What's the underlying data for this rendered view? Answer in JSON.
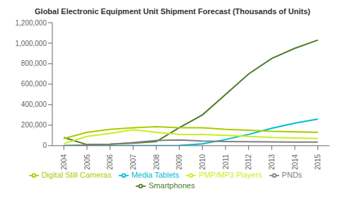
{
  "chart_data": {
    "type": "line",
    "title": "Global Electronic Equipment Unit Shipment Forecast (Thousands of Units)",
    "x": [
      2004,
      2005,
      2006,
      2007,
      2008,
      2009,
      2010,
      2011,
      2012,
      2013,
      2014,
      2015
    ],
    "series": [
      {
        "name": "Smartphones",
        "color": "#4d7c2a",
        "values": [
          80000,
          10000,
          15000,
          25000,
          40000,
          175000,
          300000,
          500000,
          700000,
          850000,
          950000,
          1030000
        ]
      },
      {
        "name": "Media Tablets",
        "color": "#00bcd4",
        "values": [
          0,
          0,
          0,
          0,
          0,
          2000,
          18000,
          60000,
          110000,
          170000,
          220000,
          260000
        ]
      },
      {
        "name": "Digital Still Cameras",
        "color": "#aacc00",
        "values": [
          70000,
          130000,
          160000,
          175000,
          185000,
          175000,
          175000,
          160000,
          150000,
          140000,
          135000,
          130000
        ]
      },
      {
        "name": "PMP/MP3 Players",
        "color": "#ccee22",
        "values": [
          20000,
          90000,
          120000,
          155000,
          130000,
          110000,
          110000,
          100000,
          90000,
          80000,
          75000,
          70000
        ]
      },
      {
        "name": "PNDs",
        "color": "#808080",
        "values": [
          0,
          5000,
          15000,
          30000,
          50000,
          55000,
          45000,
          40000,
          38000,
          36000,
          35000,
          35000
        ]
      }
    ],
    "xlim": [
      2003.5,
      2015.5
    ],
    "xticks": [
      2004,
      2005,
      2006,
      2007,
      2008,
      2009,
      2010,
      2011,
      2012,
      2013,
      2014,
      2015
    ],
    "ylim": [
      0,
      1200000
    ],
    "yticks": [
      0,
      {
        "value": 200000,
        "label": "200,000"
      },
      {
        "value": 400000,
        "label": "400,000"
      },
      {
        "value": 600000,
        "label": "600,000"
      },
      {
        "value": 800000,
        "label": "800,000"
      },
      {
        "value": 1000000,
        "label": "1,000,000"
      },
      {
        "value": 1200000,
        "label": "1,200,000"
      }
    ],
    "grid": false,
    "legend": "bottom"
  }
}
